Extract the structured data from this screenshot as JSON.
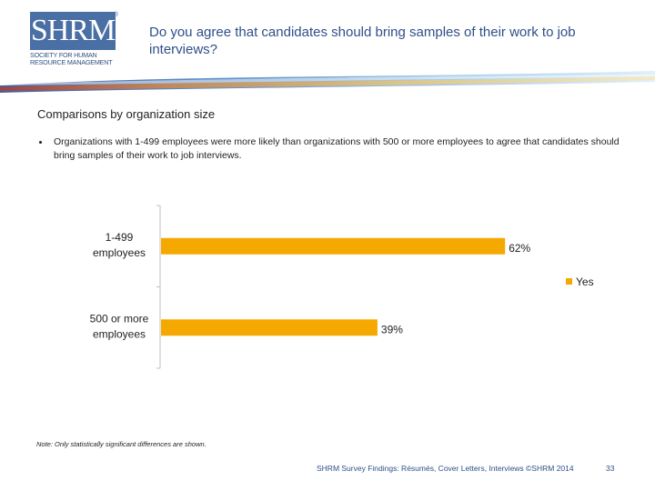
{
  "logo": {
    "letters": "SHRM",
    "registered": "®",
    "sub_line1": "SOCIETY FOR HUMAN",
    "sub_line2": "RESOURCE MANAGEMENT"
  },
  "header": {
    "title": "Do you agree that candidates should bring samples of their work to job interviews?"
  },
  "section": {
    "subhead": "Comparisons by organization size",
    "bullet": "Organizations with 1-499 employees were more likely than organizations with 500 or more employees to agree that candidates should bring samples of their work to job interviews."
  },
  "chart_data": {
    "type": "bar",
    "orientation": "horizontal",
    "categories": [
      "1-499 employees",
      "500 or more employees"
    ],
    "category_lines": [
      [
        "1-499",
        "employees"
      ],
      [
        "500 or more",
        "employees"
      ]
    ],
    "series": [
      {
        "name": "Yes",
        "values": [
          62,
          39
        ],
        "labels": [
          "62%",
          "39%"
        ],
        "color": "#f5a800"
      }
    ],
    "xlim": [
      0,
      100
    ],
    "legend": "right",
    "grid": false
  },
  "note": "Note: Only statistically significant differences are shown.",
  "footer": {
    "text": "SHRM Survey Findings: Résumés, Cover Letters, Interviews ©SHRM 2014",
    "page": "33"
  }
}
